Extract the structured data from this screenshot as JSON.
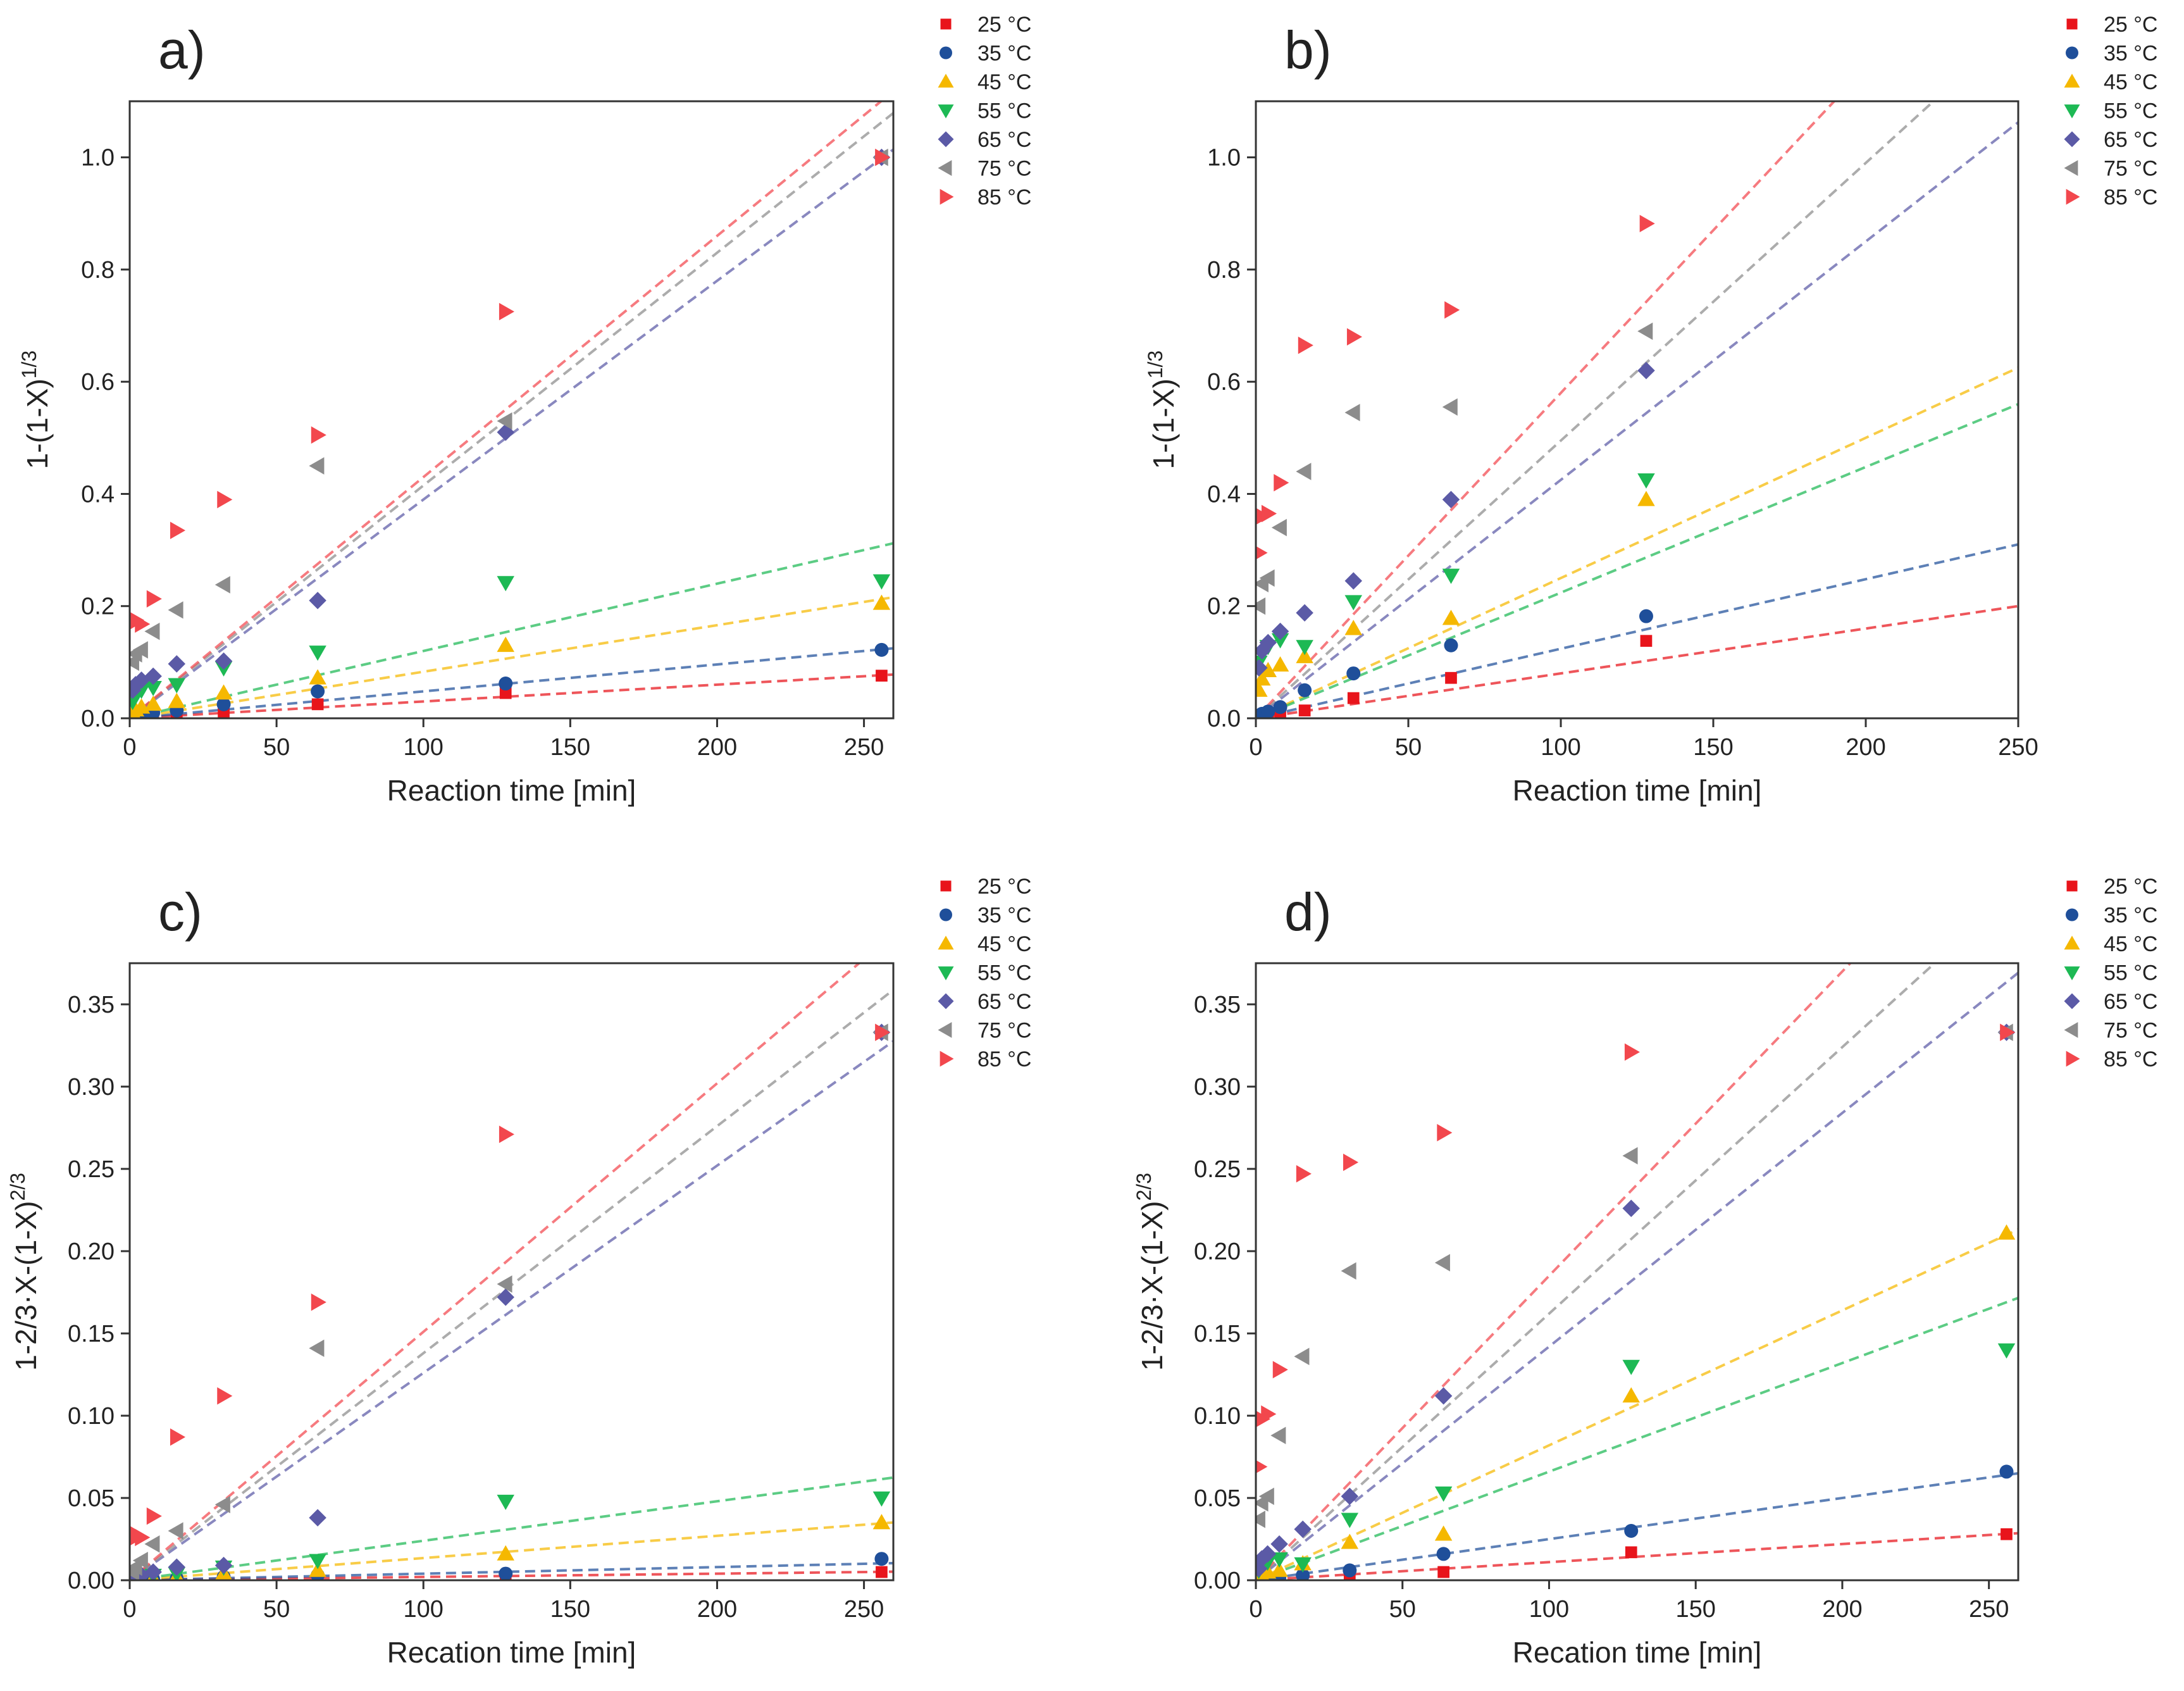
{
  "palette": {
    "25 °C": "#e8141b",
    "35 °C": "#1f4f9a",
    "45 °C": "#f5b800",
    "55 °C": "#1db954",
    "65 °C": "#5b5aa6",
    "75 °C": "#8c8c8c",
    "85 °C": "#f2474d"
  },
  "markers": {
    "25 °C": "square",
    "35 °C": "circle",
    "45 °C": "triangle-up",
    "55 °C": "triangle-down",
    "65 °C": "diamond",
    "75 °C": "triangle-left",
    "85 °C": "triangle-right"
  },
  "legend_entries": [
    "25 °C",
    "35 °C",
    "45 °C",
    "55 °C",
    "65 °C",
    "75 °C",
    "85 °C"
  ],
  "chart_data": [
    {
      "panel": "a)",
      "type": "scatter",
      "xlabel": "Reaction time [min]",
      "ylabel_base": "1-(1-X)",
      "ylabel_exp": "1/3",
      "xlim": [
        0,
        260
      ],
      "ylim": [
        0,
        1.1
      ],
      "xticks": [
        0,
        50,
        100,
        150,
        200,
        250
      ],
      "yticks": [
        0.0,
        0.2,
        0.4,
        0.6,
        0.8,
        1.0
      ],
      "ytick_labels": [
        "0.0",
        "0.2",
        "0.4",
        "0.6",
        "0.8",
        "1.0"
      ],
      "x": [
        1,
        2,
        4,
        8,
        16,
        32,
        64,
        128,
        256
      ],
      "series": [
        {
          "name": "25 °C",
          "values": [
            0.002,
            0.003,
            0.004,
            0.006,
            0.008,
            0.012,
            0.025,
            0.045,
            0.076
          ],
          "fit_slope": 0.0003
        },
        {
          "name": "35 °C",
          "values": [
            0.003,
            0.005,
            0.007,
            0.01,
            0.014,
            0.025,
            0.048,
            0.062,
            0.122
          ],
          "fit_slope": 0.00048
        },
        {
          "name": "45 °C",
          "values": [
            0.01,
            0.015,
            0.02,
            0.025,
            0.03,
            0.045,
            0.072,
            0.13,
            0.205
          ],
          "fit_slope": 0.00083
        },
        {
          "name": "55 °C",
          "values": [
            0.03,
            0.04,
            0.05,
            0.055,
            0.06,
            0.09,
            0.118,
            0.242,
            0.245
          ],
          "fit_slope": 0.0012
        },
        {
          "name": "65 °C",
          "values": [
            0.05,
            0.06,
            0.068,
            0.075,
            0.097,
            0.102,
            0.21,
            0.51,
            1.0
          ],
          "fit_slope": 0.0039
        },
        {
          "name": "75 °C",
          "values": [
            0.1,
            0.115,
            0.122,
            0.155,
            0.193,
            0.238,
            0.45,
            0.53,
            1.0
          ],
          "fit_slope": 0.00415
        },
        {
          "name": "85 °C",
          "values": [
            0.17,
            0.175,
            0.168,
            0.213,
            0.335,
            0.39,
            0.505,
            0.725,
            1.0
          ],
          "fit_slope": 0.0043
        }
      ]
    },
    {
      "panel": "b)",
      "type": "scatter",
      "xlabel": "Reaction time [min]",
      "ylabel_base": "1-(1-X)",
      "ylabel_exp": "1/3",
      "xlim": [
        0,
        250
      ],
      "ylim": [
        0,
        1.1
      ],
      "xticks": [
        0,
        50,
        100,
        150,
        200,
        250
      ],
      "yticks": [
        0.0,
        0.2,
        0.4,
        0.6,
        0.8,
        1.0
      ],
      "ytick_labels": [
        "0.0",
        "0.2",
        "0.4",
        "0.6",
        "0.8",
        "1.0"
      ],
      "x": [
        1,
        2,
        4,
        8,
        16,
        32,
        64,
        128
      ],
      "series": [
        {
          "name": "25 °C",
          "values": [
            0.002,
            0.003,
            0.005,
            0.008,
            0.014,
            0.036,
            0.072,
            0.138
          ],
          "fit_slope": 0.0008
        },
        {
          "name": "35 °C",
          "values": [
            0.005,
            0.008,
            0.012,
            0.02,
            0.05,
            0.08,
            0.13,
            0.182
          ],
          "fit_slope": 0.00124
        },
        {
          "name": "45 °C",
          "values": [
            0.05,
            0.07,
            0.085,
            0.095,
            0.11,
            0.16,
            0.178,
            0.39
          ],
          "fit_slope": 0.0025
        },
        {
          "name": "55 °C",
          "values": [
            0.1,
            0.115,
            0.128,
            0.14,
            0.128,
            0.208,
            0.255,
            0.425
          ],
          "fit_slope": 0.00224
        },
        {
          "name": "65 °C",
          "values": [
            0.09,
            0.12,
            0.135,
            0.155,
            0.188,
            0.245,
            0.39,
            0.62
          ],
          "fit_slope": 0.00425
        },
        {
          "name": "75 °C",
          "values": [
            0.2,
            0.24,
            0.25,
            0.34,
            0.44,
            0.545,
            0.555,
            0.69
          ],
          "fit_slope": 0.00495
        },
        {
          "name": "85 °C",
          "values": [
            0.295,
            0.36,
            0.365,
            0.42,
            0.665,
            0.68,
            0.728,
            0.882
          ],
          "fit_slope": 0.0058
        }
      ]
    },
    {
      "panel": "c)",
      "type": "scatter",
      "xlabel": "Recation time [min]",
      "ylabel_base": "1-2/3·X-(1-X)",
      "ylabel_exp": "2/3",
      "xlim": [
        0,
        260
      ],
      "ylim": [
        0,
        0.375
      ],
      "xticks": [
        0,
        50,
        100,
        150,
        200,
        250
      ],
      "yticks": [
        0.0,
        0.05,
        0.1,
        0.15,
        0.2,
        0.25,
        0.3,
        0.35
      ],
      "ytick_labels": [
        "0.00",
        "0.05",
        "0.10",
        "0.15",
        "0.20",
        "0.25",
        "0.30",
        "0.35"
      ],
      "x": [
        1,
        2,
        4,
        8,
        16,
        32,
        64,
        128,
        256
      ],
      "series": [
        {
          "name": "25 °C",
          "values": [
            0.0,
            0.0,
            0.0,
            0.0,
            0.0,
            0.0005,
            0.001,
            0.002,
            0.005
          ],
          "fit_slope": 2e-05
        },
        {
          "name": "35 °C",
          "values": [
            0.0,
            0.0,
            0.0,
            0.0005,
            0.001,
            0.002,
            0.003,
            0.004,
            0.013
          ],
          "fit_slope": 4e-05
        },
        {
          "name": "45 °C",
          "values": [
            0.0,
            0.0,
            0.0005,
            0.001,
            0.002,
            0.004,
            0.006,
            0.016,
            0.035
          ],
          "fit_slope": 0.000135
        },
        {
          "name": "55 °C",
          "values": [
            0.0,
            0.001,
            0.002,
            0.003,
            0.004,
            0.008,
            0.012,
            0.048,
            0.05
          ],
          "fit_slope": 0.00024
        },
        {
          "name": "65 °C",
          "values": [
            0.001,
            0.002,
            0.003,
            0.005,
            0.008,
            0.009,
            0.038,
            0.172,
            0.333
          ],
          "fit_slope": 0.00126
        },
        {
          "name": "75 °C",
          "values": [
            0.005,
            0.008,
            0.012,
            0.022,
            0.03,
            0.046,
            0.141,
            0.18,
            0.333
          ],
          "fit_slope": 0.00138
        },
        {
          "name": "85 °C",
          "values": [
            0.025,
            0.028,
            0.026,
            0.039,
            0.087,
            0.112,
            0.169,
            0.271,
            0.333
          ],
          "fit_slope": 0.00151
        }
      ]
    },
    {
      "panel": "d)",
      "type": "scatter",
      "xlabel": "Recation time [min]",
      "ylabel_base": "1-2/3·X-(1-X)",
      "ylabel_exp": "2/3",
      "xlim": [
        0,
        260
      ],
      "ylim": [
        0,
        0.375
      ],
      "xticks": [
        0,
        50,
        100,
        150,
        200,
        250
      ],
      "yticks": [
        0.0,
        0.05,
        0.1,
        0.15,
        0.2,
        0.25,
        0.3,
        0.35
      ],
      "ytick_labels": [
        "0.00",
        "0.05",
        "0.10",
        "0.15",
        "0.20",
        "0.25",
        "0.30",
        "0.35"
      ],
      "x": [
        1,
        2,
        4,
        8,
        16,
        32,
        64,
        128,
        256
      ],
      "series": [
        {
          "name": "25 °C",
          "values": [
            0.0,
            0.0,
            0.0005,
            0.001,
            0.0015,
            0.003,
            0.005,
            0.017,
            0.028
          ],
          "fit_slope": 0.00011
        },
        {
          "name": "35 °C",
          "values": [
            0.0,
            0.001,
            0.001,
            0.0015,
            0.003,
            0.006,
            0.016,
            0.03,
            0.066
          ],
          "fit_slope": 0.00025
        },
        {
          "name": "45 °C",
          "values": [
            0.002,
            0.003,
            0.005,
            0.006,
            0.01,
            0.023,
            0.028,
            0.112,
            0.211
          ],
          "fit_slope": 0.00082
        },
        {
          "name": "55 °C",
          "values": [
            0.006,
            0.009,
            0.011,
            0.013,
            0.01,
            0.037,
            0.053,
            0.13,
            0.14
          ],
          "fit_slope": 0.00066
        },
        {
          "name": "65 °C",
          "values": [
            0.007,
            0.013,
            0.016,
            0.022,
            0.031,
            0.051,
            0.112,
            0.226,
            0.333
          ],
          "fit_slope": 0.00142
        },
        {
          "name": "75 °C",
          "values": [
            0.037,
            0.047,
            0.051,
            0.088,
            0.136,
            0.188,
            0.193,
            0.258,
            0.333
          ],
          "fit_slope": 0.00162
        },
        {
          "name": "85 °C",
          "values": [
            0.069,
            0.098,
            0.101,
            0.128,
            0.247,
            0.254,
            0.272,
            0.321,
            0.333
          ],
          "fit_slope": 0.00185
        }
      ]
    }
  ]
}
